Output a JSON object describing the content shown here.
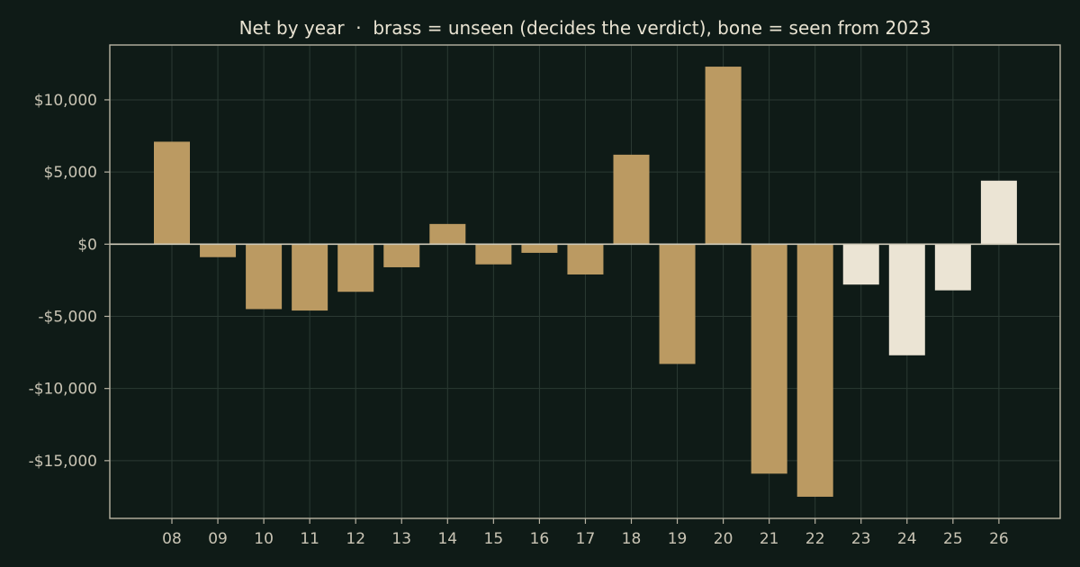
{
  "chart_data": {
    "type": "bar",
    "title": "Net by year  ·  brass = unseen (decides the verdict), bone = seen from 2023",
    "xlabel": "",
    "ylabel": "",
    "categories": [
      "08",
      "09",
      "10",
      "11",
      "12",
      "13",
      "14",
      "15",
      "16",
      "17",
      "18",
      "19",
      "20",
      "21",
      "22",
      "23",
      "24",
      "25",
      "26"
    ],
    "values": [
      7100,
      -900,
      -4500,
      -4600,
      -3300,
      -1600,
      1400,
      -1400,
      -600,
      -2100,
      6200,
      -8300,
      12300,
      -15900,
      -17500,
      -2800,
      -7700,
      -3200,
      4400
    ],
    "seen": [
      false,
      false,
      false,
      false,
      false,
      false,
      false,
      false,
      false,
      false,
      false,
      false,
      false,
      false,
      false,
      true,
      true,
      true,
      true
    ],
    "ylim": [
      -19000,
      13800
    ],
    "yticks": [
      10000,
      5000,
      0,
      -5000,
      -10000,
      -15000
    ],
    "ytick_labels": [
      "$10,000",
      "$5,000",
      "$0",
      "-$5,000",
      "-$10,000",
      "-$15,000"
    ],
    "grid": true,
    "colors": {
      "unseen": "#bb9a62",
      "seen": "#ebe4d4",
      "background": "#0f1b17",
      "grid": "#2b3a33"
    }
  }
}
